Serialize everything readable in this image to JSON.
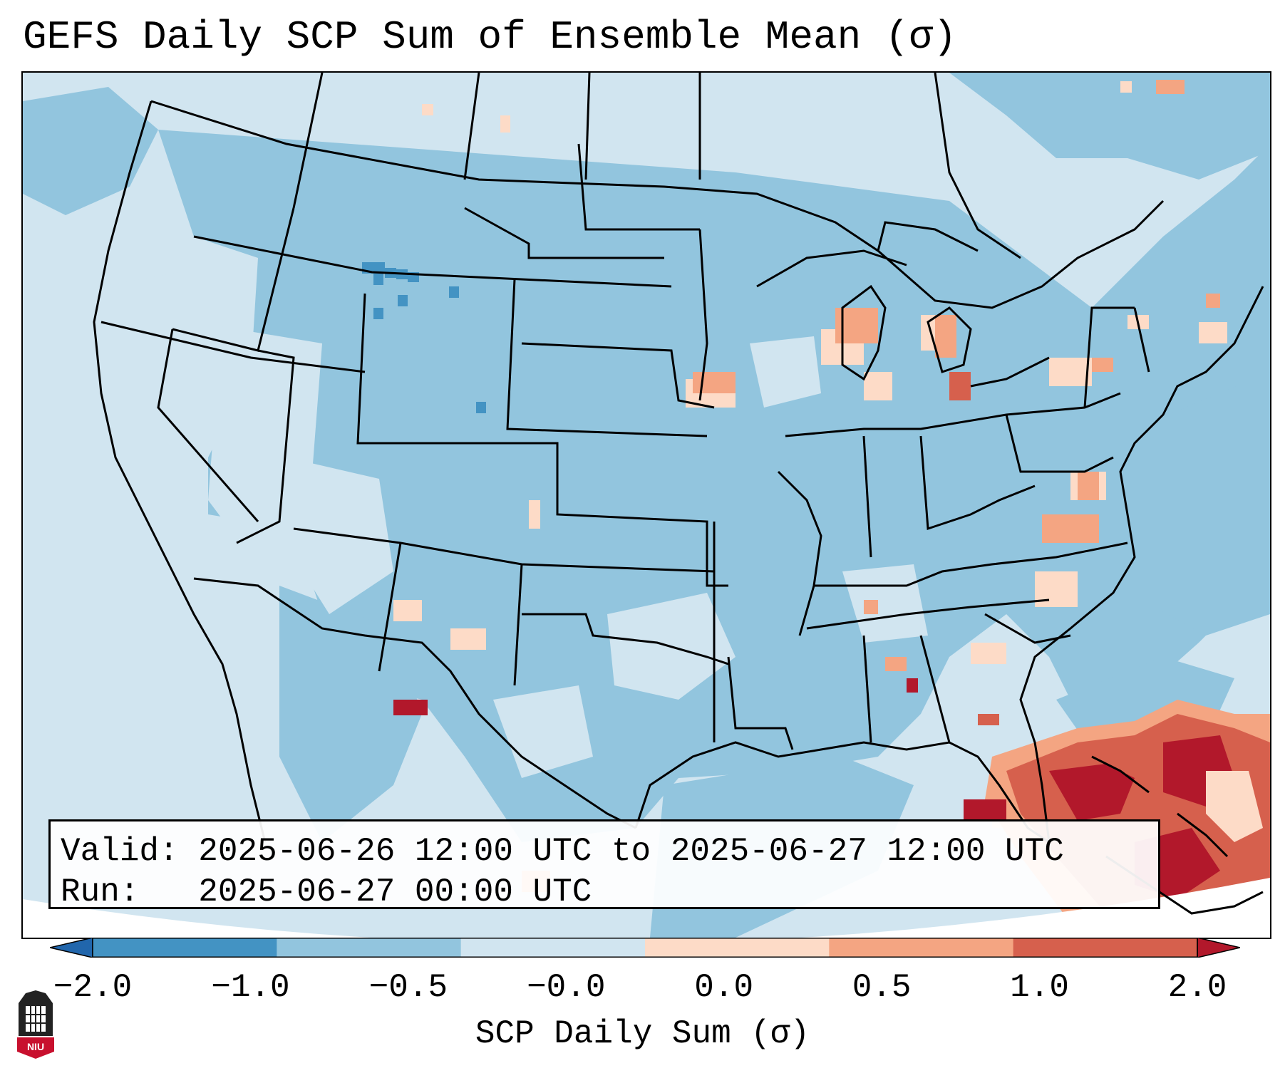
{
  "title": "GEFS Daily SCP Sum of Ensemble Mean (σ)",
  "info": {
    "valid_label": "Valid:",
    "valid_value": "2025-06-26 12:00 UTC to 2025-06-27 12:00 UTC",
    "run_label": "Run:",
    "run_value": "2025-06-27 00:00 UTC"
  },
  "colorbar": {
    "title": "SCP Daily Sum (σ)",
    "tick_labels": [
      "−2.0",
      "−1.0",
      "−0.5",
      "−0.0",
      "0.0",
      "0.5",
      "1.0",
      "2.0"
    ],
    "colors": [
      "#2166ac",
      "#4393c3",
      "#92c5de",
      "#d1e5f0",
      "#fddbc7",
      "#f4a582",
      "#d6604d",
      "#b2182b"
    ]
  },
  "logo": {
    "text": "NIU"
  },
  "map": {
    "background_color": "#d1e5f0",
    "dominant_color": "#92c5de",
    "outline_color": "#000000"
  }
}
